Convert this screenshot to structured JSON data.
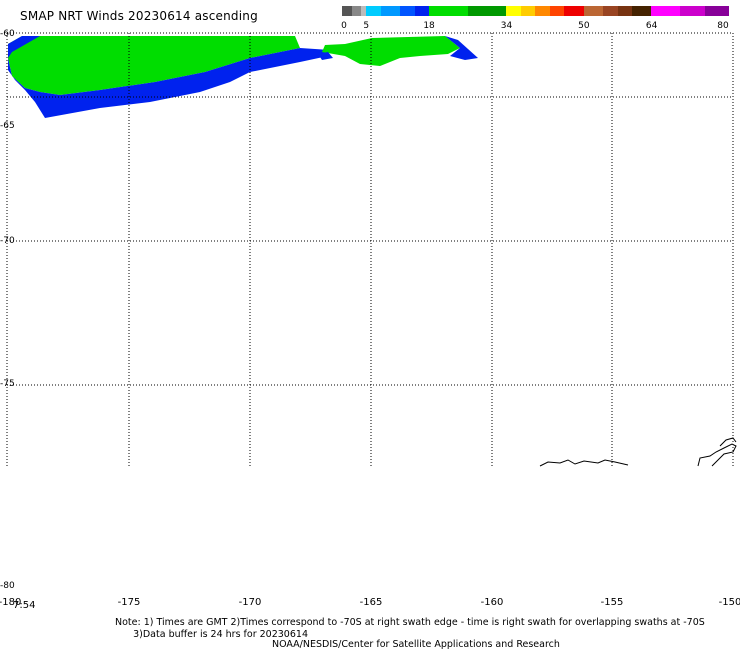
{
  "title": "SMAP NRT Winds 20230614 ascending",
  "colorbar": {
    "labels": [
      {
        "text": "0",
        "pos": 0
      },
      {
        "text": "5",
        "pos": 5
      },
      {
        "text": "18",
        "pos": 18
      },
      {
        "text": "34",
        "pos": 34
      },
      {
        "text": "50",
        "pos": 50
      },
      {
        "text": "64",
        "pos": 64
      },
      {
        "text": "80",
        "pos": 80
      }
    ],
    "segments": [
      {
        "from": 0,
        "to": 2,
        "color": "#555555"
      },
      {
        "from": 2,
        "to": 4,
        "color": "#888888"
      },
      {
        "from": 4,
        "to": 5,
        "color": "#bbbbbb"
      },
      {
        "from": 5,
        "to": 8,
        "color": "#00ccff"
      },
      {
        "from": 8,
        "to": 12,
        "color": "#0099ff"
      },
      {
        "from": 12,
        "to": 15,
        "color": "#0055ff"
      },
      {
        "from": 15,
        "to": 18,
        "color": "#0022ee"
      },
      {
        "from": 18,
        "to": 26,
        "color": "#00dd00"
      },
      {
        "from": 26,
        "to": 34,
        "color": "#009900"
      },
      {
        "from": 34,
        "to": 37,
        "color": "#ffff00"
      },
      {
        "from": 37,
        "to": 40,
        "color": "#ffcc00"
      },
      {
        "from": 40,
        "to": 43,
        "color": "#ff8800"
      },
      {
        "from": 43,
        "to": 46,
        "color": "#ff4400"
      },
      {
        "from": 46,
        "to": 50,
        "color": "#ee0000"
      },
      {
        "from": 50,
        "to": 54,
        "color": "#bb6633"
      },
      {
        "from": 54,
        "to": 57,
        "color": "#994422"
      },
      {
        "from": 57,
        "to": 60,
        "color": "#773311"
      },
      {
        "from": 60,
        "to": 64,
        "color": "#442200"
      },
      {
        "from": 64,
        "to": 70,
        "color": "#ff00ff"
      },
      {
        "from": 70,
        "to": 75,
        "color": "#cc00cc"
      },
      {
        "from": 75,
        "to": 80,
        "color": "#880099"
      }
    ]
  },
  "lat_labels": [
    "-60",
    "-65",
    "-70",
    "-75",
    "-80"
  ],
  "lon_labels": [
    "-180",
    "-175",
    "-170",
    "-165",
    "-160",
    "-155",
    "-150"
  ],
  "time_label": "7:54",
  "note": "Note: 1) Times are GMT 2)Times correspond to -70S at right swath edge - time is right swath for overlapping swaths at -70S\n      3)Data buffer is 24 hrs for 20230614",
  "credit": "NOAA/NESDIS/Center for Satellite Applications and Research",
  "colors": {
    "wind_low": "#0022ee",
    "wind_mid": "#00dd00",
    "coastline": "#000000"
  }
}
